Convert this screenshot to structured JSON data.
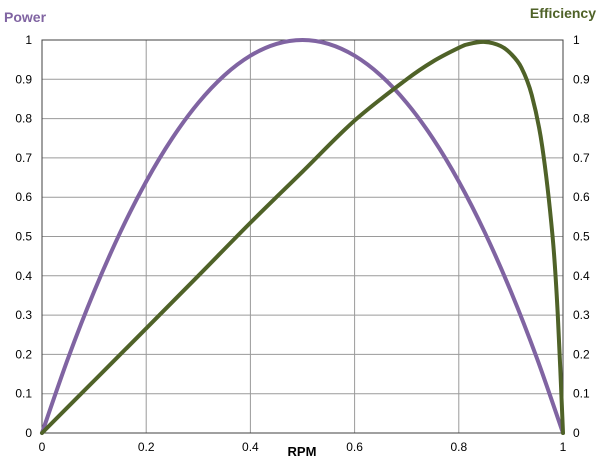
{
  "colors": {
    "power": "#8064a2",
    "efficiency": "#4f6228",
    "grid": "#9a9a9a",
    "axis": "#404040",
    "tick_text": "#000000"
  },
  "chart_data": {
    "type": "line",
    "title": "",
    "xlabel": "RPM",
    "ylabel_left": "Power",
    "ylabel_right": "Efficiency",
    "xlim": [
      0,
      1
    ],
    "ylim": [
      0,
      1
    ],
    "grid": true,
    "x_ticks": [
      "0",
      "0.2",
      "0.4",
      "0.6",
      "0.8",
      "1"
    ],
    "y_ticks": [
      "0",
      "0.1",
      "0.2",
      "0.3",
      "0.4",
      "0.5",
      "0.6",
      "0.7",
      "0.8",
      "0.9",
      "1"
    ],
    "series": [
      {
        "name": "Power",
        "axis": "left",
        "color": "#8064a2",
        "x": [
          0,
          0.05,
          0.1,
          0.15,
          0.2,
          0.25,
          0.3,
          0.35,
          0.4,
          0.45,
          0.5,
          0.55,
          0.6,
          0.65,
          0.7,
          0.75,
          0.8,
          0.85,
          0.9,
          0.95,
          1
        ],
        "y": [
          0,
          0.19,
          0.36,
          0.51,
          0.64,
          0.75,
          0.84,
          0.91,
          0.96,
          0.99,
          1,
          0.99,
          0.96,
          0.91,
          0.84,
          0.75,
          0.64,
          0.51,
          0.36,
          0.19,
          0
        ]
      },
      {
        "name": "Efficiency",
        "axis": "right",
        "color": "#4f6228",
        "x": [
          0,
          0.1,
          0.2,
          0.3,
          0.4,
          0.5,
          0.6,
          0.7,
          0.75,
          0.8,
          0.82,
          0.85,
          0.88,
          0.9,
          0.92,
          0.94,
          0.96,
          0.98,
          0.99,
          1
        ],
        "y": [
          0,
          0.133,
          0.266,
          0.4,
          0.535,
          0.665,
          0.795,
          0.9,
          0.945,
          0.98,
          0.99,
          0.995,
          0.985,
          0.965,
          0.93,
          0.86,
          0.73,
          0.5,
          0.3,
          0
        ]
      }
    ]
  }
}
